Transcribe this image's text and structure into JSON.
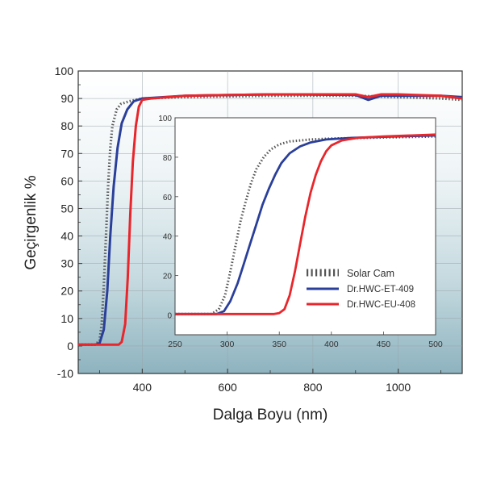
{
  "chart_data": [
    {
      "id": "main",
      "type": "line",
      "xlabel": "Dalga Boyu (nm)",
      "ylabel": "Geçirgenlik %",
      "xlim": [
        250,
        1150
      ],
      "ylim": [
        -10,
        100
      ],
      "xticks": [
        400,
        600,
        800,
        1000
      ],
      "yticks": [
        -10,
        0,
        10,
        20,
        30,
        40,
        50,
        60,
        70,
        80,
        90,
        100
      ],
      "series": [
        {
          "key": "solar",
          "color": "#555555",
          "style": "dotted",
          "points": [
            [
              250,
              0.5
            ],
            [
              290,
              0.5
            ],
            [
              300,
              2
            ],
            [
              305,
              8
            ],
            [
              310,
              22
            ],
            [
              315,
              40
            ],
            [
              320,
              58
            ],
            [
              325,
              72
            ],
            [
              330,
              80
            ],
            [
              340,
              86
            ],
            [
              350,
              88
            ],
            [
              370,
              89
            ],
            [
              400,
              90
            ],
            [
              500,
              90.5
            ],
            [
              700,
              91
            ],
            [
              900,
              91
            ],
            [
              1000,
              90.5
            ],
            [
              1100,
              90
            ],
            [
              1150,
              89.5
            ]
          ]
        },
        {
          "key": "et",
          "color": "#2a3f9a",
          "style": "solid",
          "points": [
            [
              250,
              0.5
            ],
            [
              290,
              0.5
            ],
            [
              300,
              1
            ],
            [
              310,
              6
            ],
            [
              318,
              20
            ],
            [
              325,
              40
            ],
            [
              333,
              58
            ],
            [
              342,
              72
            ],
            [
              352,
              81
            ],
            [
              365,
              86
            ],
            [
              380,
              89
            ],
            [
              400,
              90
            ],
            [
              500,
              91
            ],
            [
              700,
              91.5
            ],
            [
              900,
              91.3
            ],
            [
              930,
              89.5
            ],
            [
              960,
              91
            ],
            [
              1000,
              91
            ],
            [
              1100,
              91
            ],
            [
              1150,
              90.5
            ]
          ]
        },
        {
          "key": "eu",
          "color": "#e8262b",
          "style": "solid",
          "points": [
            [
              250,
              0.5
            ],
            [
              345,
              0.5
            ],
            [
              352,
              1.5
            ],
            [
              360,
              8
            ],
            [
              366,
              25
            ],
            [
              372,
              48
            ],
            [
              378,
              67
            ],
            [
              385,
              80
            ],
            [
              392,
              87
            ],
            [
              400,
              89.5
            ],
            [
              420,
              90
            ],
            [
              500,
              91
            ],
            [
              700,
              91.5
            ],
            [
              900,
              91.5
            ],
            [
              930,
              90.5
            ],
            [
              960,
              91.5
            ],
            [
              1000,
              91.5
            ],
            [
              1100,
              91
            ],
            [
              1150,
              90
            ]
          ]
        }
      ]
    },
    {
      "id": "inset",
      "type": "line",
      "xlim": [
        250,
        500
      ],
      "ylim": [
        -10,
        100
      ],
      "xticks": [
        250,
        300,
        350,
        400,
        450,
        500
      ],
      "yticks": [
        0,
        20,
        40,
        60,
        80,
        100
      ],
      "legend": [
        "Solar Cam",
        "Dr.HWC-ET-409",
        "Dr.HWC-EU-408"
      ],
      "legend_placement": "bottom-right",
      "series": [
        {
          "name": "Solar Cam",
          "key": "solar",
          "color": "#555555",
          "style": "dotted",
          "points": [
            [
              250,
              0.5
            ],
            [
              285,
              0.5
            ],
            [
              292,
              3
            ],
            [
              298,
              10
            ],
            [
              303,
              22
            ],
            [
              308,
              35
            ],
            [
              313,
              48
            ],
            [
              318,
              58
            ],
            [
              323,
              67
            ],
            [
              328,
              74
            ],
            [
              335,
              80
            ],
            [
              342,
              84
            ],
            [
              350,
              86.5
            ],
            [
              360,
              88
            ],
            [
              380,
              89
            ],
            [
              400,
              89.5
            ],
            [
              450,
              90
            ],
            [
              500,
              90.5
            ]
          ]
        },
        {
          "name": "Dr.HWC-ET-409",
          "key": "et",
          "color": "#2a3f9a",
          "style": "solid",
          "points": [
            [
              250,
              0.5
            ],
            [
              290,
              0.5
            ],
            [
              297,
              2
            ],
            [
              303,
              7
            ],
            [
              310,
              16
            ],
            [
              316,
              26
            ],
            [
              322,
              36
            ],
            [
              328,
              46
            ],
            [
              334,
              56
            ],
            [
              340,
              64
            ],
            [
              346,
              71
            ],
            [
              352,
              77
            ],
            [
              360,
              82
            ],
            [
              370,
              85.5
            ],
            [
              380,
              87.5
            ],
            [
              395,
              89
            ],
            [
              420,
              89.8
            ],
            [
              460,
              90.5
            ],
            [
              500,
              91
            ]
          ]
        },
        {
          "name": "Dr.HWC-EU-408",
          "key": "eu",
          "color": "#e8262b",
          "style": "solid",
          "points": [
            [
              250,
              0.5
            ],
            [
              345,
              0.5
            ],
            [
              350,
              1
            ],
            [
              355,
              3
            ],
            [
              360,
              10
            ],
            [
              365,
              22
            ],
            [
              370,
              36
            ],
            [
              375,
              50
            ],
            [
              380,
              62
            ],
            [
              385,
              71
            ],
            [
              390,
              78
            ],
            [
              395,
              83
            ],
            [
              400,
              86
            ],
            [
              410,
              88.5
            ],
            [
              425,
              89.8
            ],
            [
              450,
              90.5
            ],
            [
              500,
              91.5
            ]
          ]
        }
      ]
    }
  ]
}
